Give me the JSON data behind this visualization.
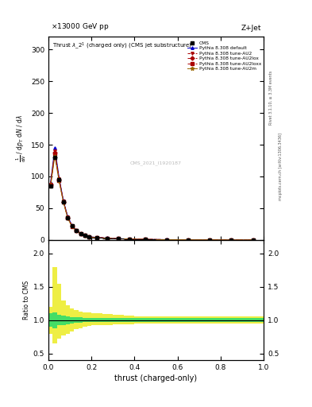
{
  "title_top_left": "13000 GeV pp",
  "title_top_right": "Z+Jet",
  "panel_title": "Thrust $\\lambda\\_2^1$ (charged only) (CMS jet substructure)",
  "watermark": "CMS_2021_I1920187",
  "ylabel_main_lines": [
    "mathrm d$^2$N",
    "mathrm d $p_T$ mathrm d N / mathrm d lambda"
  ],
  "ylabel_ratio": "Ratio to CMS",
  "xlabel": "thrust (charged-only)",
  "right_label1": "Rivet 3.1.10, ≥ 3.3M events",
  "right_label2": "mcplots.cern.ch [arXiv:1306.3436]",
  "xlim": [
    0,
    1
  ],
  "ylim_main": [
    0,
    320
  ],
  "ylim_ratio": [
    0.4,
    2.2
  ],
  "yticks_main": [
    0,
    50,
    100,
    150,
    200,
    250,
    300
  ],
  "yticks_ratio": [
    0.5,
    1.0,
    1.5,
    2.0
  ],
  "thrust_bins": [
    0.0,
    0.02,
    0.04,
    0.06,
    0.08,
    0.1,
    0.12,
    0.14,
    0.16,
    0.18,
    0.2,
    0.25,
    0.3,
    0.35,
    0.4,
    0.5,
    0.6,
    0.7,
    0.8,
    0.9,
    1.0
  ],
  "cms_values": [
    85,
    130,
    95,
    60,
    35,
    22,
    15,
    10,
    7,
    5,
    4,
    3,
    2,
    1.5,
    1,
    0.5,
    0.3,
    0.2,
    0.1,
    0.05
  ],
  "cms_errors": [
    10,
    15,
    12,
    8,
    5,
    3,
    2,
    1.5,
    1,
    0.8,
    0.6,
    0.5,
    0.4,
    0.3,
    0.2,
    0.15,
    0.1,
    0.1,
    0.05,
    0.02
  ],
  "pythia_default": [
    90,
    145,
    98,
    62,
    37,
    23,
    15.5,
    10.5,
    7.2,
    5.2,
    4.1,
    3.1,
    2.1,
    1.6,
    1.1,
    0.55,
    0.32,
    0.22,
    0.12,
    0.06
  ],
  "pythia_au2": [
    88,
    140,
    96,
    61,
    36,
    22.5,
    15.2,
    10.2,
    7.0,
    5.0,
    4.0,
    3.0,
    2.0,
    1.55,
    1.05,
    0.52,
    0.31,
    0.21,
    0.11,
    0.055
  ],
  "pythia_au2lox": [
    87,
    138,
    95,
    60.5,
    35.5,
    22,
    15,
    10,
    6.9,
    4.9,
    3.9,
    2.9,
    1.95,
    1.5,
    1.02,
    0.51,
    0.3,
    0.2,
    0.1,
    0.052
  ],
  "pythia_au2loxx": [
    86,
    136,
    94,
    60,
    35,
    21.5,
    14.8,
    9.8,
    6.8,
    4.8,
    3.8,
    2.85,
    1.9,
    1.45,
    1.0,
    0.5,
    0.29,
    0.19,
    0.1,
    0.05
  ],
  "pythia_au2m": [
    84,
    132,
    92,
    59,
    34,
    21,
    14.5,
    9.5,
    6.6,
    4.6,
    3.7,
    2.75,
    1.85,
    1.4,
    0.98,
    0.48,
    0.28,
    0.18,
    0.09,
    0.048
  ],
  "ratio_green_lo": [
    0.9,
    0.88,
    0.92,
    0.93,
    0.94,
    0.95,
    0.96,
    0.96,
    0.97,
    0.97,
    0.97,
    0.97,
    0.97,
    0.97,
    0.97,
    0.97,
    0.97,
    0.97,
    0.97,
    0.97
  ],
  "ratio_green_hi": [
    1.1,
    1.12,
    1.08,
    1.07,
    1.06,
    1.05,
    1.04,
    1.04,
    1.03,
    1.03,
    1.03,
    1.03,
    1.03,
    1.03,
    1.03,
    1.03,
    1.03,
    1.03,
    1.03,
    1.03
  ],
  "ratio_yellow_lo": [
    0.8,
    0.65,
    0.72,
    0.77,
    0.8,
    0.83,
    0.86,
    0.88,
    0.9,
    0.91,
    0.92,
    0.93,
    0.94,
    0.94,
    0.95,
    0.95,
    0.95,
    0.95,
    0.95,
    0.95
  ],
  "ratio_yellow_hi": [
    1.2,
    1.8,
    1.55,
    1.3,
    1.22,
    1.18,
    1.15,
    1.13,
    1.12,
    1.11,
    1.1,
    1.09,
    1.08,
    1.07,
    1.06,
    1.06,
    1.06,
    1.06,
    1.06,
    1.06
  ],
  "color_default": "#0000cc",
  "color_au2": "#aa0000",
  "color_au2lox": "#aa0000",
  "color_au2loxx": "#aa0000",
  "color_au2m": "#996600",
  "color_cms": "#000000",
  "color_green": "#44dd66",
  "color_yellow": "#eeee44",
  "background": "#ffffff"
}
